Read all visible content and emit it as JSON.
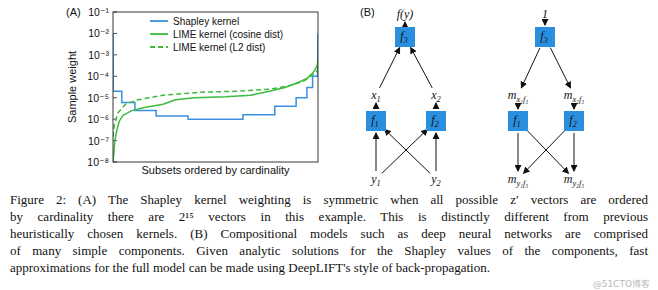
{
  "chart_data": {
    "type": "line",
    "title": "(A)",
    "x_label": "Subsets ordered by cardinality",
    "y_label": "Sample weight",
    "log": "y",
    "tick_labels": "y",
    "legend": "upper right",
    "xlim": [
      0,
      32768
    ],
    "ylim": [
      1e-08,
      0.1
    ],
    "yticks": [
      {
        "value": 0.1,
        "label": "10⁻¹"
      },
      {
        "value": 0.01,
        "label": "10⁻²"
      },
      {
        "value": 0.001,
        "label": "10⁻³"
      },
      {
        "value": 0.0001,
        "label": "10⁻⁴"
      },
      {
        "value": 1e-05,
        "label": "10⁻⁵"
      },
      {
        "value": 1e-06,
        "label": "10⁻⁶"
      },
      {
        "value": 1e-07,
        "label": "10⁻⁷"
      },
      {
        "value": 1e-08,
        "label": "10⁻⁸"
      }
    ],
    "series": [
      {
        "name": "Shapley kernel",
        "color": "#3a8fde",
        "line_style": "solid",
        "x": [
          0,
          16,
          1400,
          1400,
          3500,
          3500,
          6900,
          6900,
          12000,
          12000,
          20768,
          20768,
          25868,
          25868,
          29268,
          29268,
          31000,
          31000,
          31900,
          31900,
          32700,
          32768
        ],
        "values": [
          0.01,
          2e-05,
          2e-05,
          6e-06,
          6e-06,
          2.5e-06,
          2.5e-06,
          1.4e-06,
          1.4e-06,
          1e-06,
          1e-06,
          1.6e-06,
          1.6e-06,
          4e-06,
          4e-06,
          1e-05,
          1e-05,
          3e-05,
          3e-05,
          0.0001,
          0.0001,
          0.01
        ]
      },
      {
        "name": "LIME kernel (cosine dist)",
        "color": "#3dbb3d",
        "line_style": "solid",
        "x": [
          0,
          150,
          300,
          600,
          1000,
          1600,
          3000,
          5000,
          8000,
          10000,
          13000,
          18000,
          22000,
          25000,
          27500,
          29500,
          31000,
          32000,
          32600,
          32768
        ],
        "values": [
          1e-08,
          3e-08,
          1e-07,
          3e-07,
          8e-07,
          1.5e-06,
          2.5e-06,
          3.5e-06,
          5e-06,
          8e-06,
          1e-05,
          1.1e-05,
          1.3e-05,
          2e-05,
          3e-05,
          5e-05,
          8e-05,
          0.00015,
          0.0003,
          0.0005
        ]
      },
      {
        "name": "LIME kernel (L2 dist)",
        "color": "#3dbb3d",
        "line_style": "dashed",
        "x": [
          0,
          200,
          800,
          2000,
          4000,
          8000,
          14000,
          20000,
          25000,
          28000,
          30500,
          32000,
          32768
        ],
        "values": [
          1.5e-07,
          5e-07,
          2e-06,
          5e-06,
          8e-06,
          1.3e-05,
          1.8e-05,
          2e-05,
          2.5e-05,
          3.5e-05,
          6e-05,
          0.00012,
          0.0002
        ]
      }
    ]
  },
  "diagram": {
    "title": "(B)",
    "graphs": [
      {
        "nodes": [
          {
            "kind": "text",
            "label": "f(y)"
          },
          {
            "kind": "box",
            "label": {
              "main": "f",
              "sub": "3"
            }
          },
          {
            "kind": "text",
            "label": {
              "main": "x",
              "sub": "1"
            }
          },
          {
            "kind": "text",
            "label": {
              "main": "x",
              "sub": "2"
            }
          },
          {
            "kind": "box",
            "label": {
              "main": "f",
              "sub": "1"
            }
          },
          {
            "kind": "box",
            "label": {
              "main": "f",
              "sub": "2"
            }
          },
          {
            "kind": "text",
            "label": {
              "main": "y",
              "sub": "1"
            }
          },
          {
            "kind": "text",
            "label": {
              "main": "y",
              "sub": "2"
            }
          }
        ],
        "edges": [
          [
            1,
            0
          ],
          [
            2,
            1
          ],
          [
            3,
            1
          ],
          [
            4,
            2
          ],
          [
            5,
            3
          ],
          [
            6,
            4
          ],
          [
            6,
            5
          ],
          [
            7,
            4
          ],
          [
            7,
            5
          ]
        ]
      },
      {
        "nodes": [
          {
            "kind": "text",
            "label": "1"
          },
          {
            "kind": "box",
            "label": {
              "main": "f",
              "sub": "3"
            }
          },
          {
            "kind": "text",
            "label": {
              "main": "m",
              "sub": "x₁f₃"
            }
          },
          {
            "kind": "text",
            "label": {
              "main": "m",
              "sub": "x₂f₃"
            }
          },
          {
            "kind": "box",
            "label": {
              "main": "f",
              "sub": "1"
            }
          },
          {
            "kind": "box",
            "label": {
              "main": "f",
              "sub": "2"
            }
          },
          {
            "kind": "text",
            "label": {
              "main": "m",
              "sub": "y₁f₃"
            }
          },
          {
            "kind": "text",
            "label": {
              "main": "m",
              "sub": "y₂f₃"
            }
          }
        ],
        "edges": [
          [
            0,
            1
          ],
          [
            1,
            2
          ],
          [
            1,
            3
          ],
          [
            2,
            4
          ],
          [
            3,
            5
          ],
          [
            4,
            6
          ],
          [
            4,
            7
          ],
          [
            5,
            6
          ],
          [
            5,
            7
          ]
        ]
      }
    ]
  },
  "caption": {
    "lines": [
      "Figure 2: (A) The Shapley kernel weighting is symmetric when all possible z′ vectors are ordered",
      "by cardinality there are 2¹⁵ vectors in this example.  This is distinctly different from previous",
      "heuristically chosen kernels. (B) Compositional models such as deep neural networks are comprised",
      "of many simple components. Given analytic solutions for the Shapley values of the components, fast",
      "approximations for the full model can be made using DeepLIFT's style of back-propagation."
    ]
  },
  "watermark": "@51CTO博客"
}
